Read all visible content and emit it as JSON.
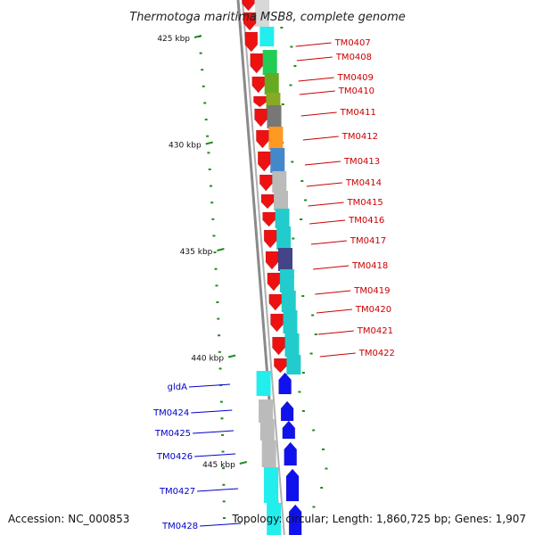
{
  "title": "Thermotoga maritima MSB8, complete genome",
  "footer": {
    "accession": "Accession: NC_000853",
    "topology": "Topology: circular; Length: 1,860,725 bp; Genes: 1,907"
  },
  "colors": {
    "forward_gene": "#ee1111",
    "reverse_gene": "#1111ee",
    "backbone": "#8a8a8a",
    "tick": "#228b22",
    "label_fwd": "#cc0000",
    "label_rev": "#0000cc"
  },
  "ticks": [
    "425 kbp",
    "430 kbp",
    "435 kbp",
    "440 kbp",
    "445 kbp"
  ],
  "forward_genes": [
    {
      "name": "TM0407",
      "cog": "#22cc55"
    },
    {
      "name": "TM0408",
      "cog": "#66aa22"
    },
    {
      "name": "TM0409",
      "cog": "#88aa22"
    },
    {
      "name": "TM0410",
      "cog": "#777777"
    },
    {
      "name": "TM0411",
      "cog": "#ff9922"
    },
    {
      "name": "TM0412",
      "cog": "#4488cc"
    },
    {
      "name": "TM0413",
      "cog": "#bbbbbb"
    },
    {
      "name": "TM0414",
      "cog": "#bbbbbb"
    },
    {
      "name": "TM0415",
      "cog": "#22cccc"
    },
    {
      "name": "TM0416",
      "cog": "#22cccc"
    },
    {
      "name": "TM0417",
      "cog": "#444488"
    },
    {
      "name": "TM0418",
      "cog": "#22cccc"
    },
    {
      "name": "TM0419",
      "cog": "#22cccc"
    },
    {
      "name": "TM0420",
      "cog": "#22cccc"
    },
    {
      "name": "TM0421",
      "cog": "#22cccc"
    },
    {
      "name": "TM0422",
      "cog": "#22cccc"
    }
  ],
  "reverse_genes": [
    {
      "name": "gldA",
      "cog": "#22eeee"
    },
    {
      "name": "TM0424",
      "cog": "#bbbbbb"
    },
    {
      "name": "TM0425",
      "cog": "#bbbbbb"
    },
    {
      "name": "TM0426",
      "cog": "#bbbbbb"
    },
    {
      "name": "TM0427",
      "cog": "#22eeee"
    },
    {
      "name": "TM0428",
      "cog": "#22eeee"
    }
  ]
}
